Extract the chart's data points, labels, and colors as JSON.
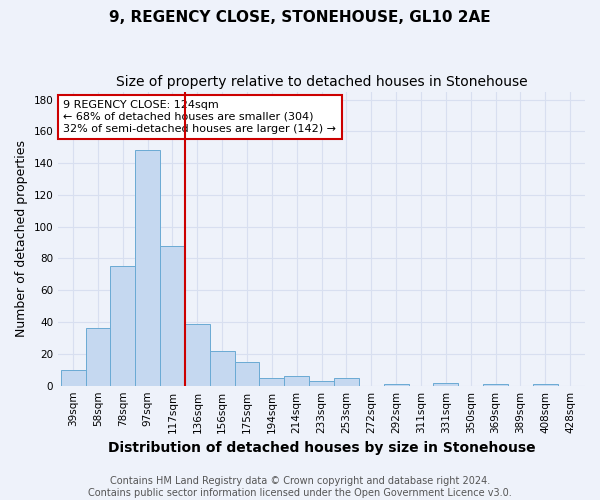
{
  "title1": "9, REGENCY CLOSE, STONEHOUSE, GL10 2AE",
  "title2": "Size of property relative to detached houses in Stonehouse",
  "xlabel": "Distribution of detached houses by size in Stonehouse",
  "ylabel": "Number of detached properties",
  "categories": [
    "39sqm",
    "58sqm",
    "78sqm",
    "97sqm",
    "117sqm",
    "136sqm",
    "156sqm",
    "175sqm",
    "194sqm",
    "214sqm",
    "233sqm",
    "253sqm",
    "272sqm",
    "292sqm",
    "311sqm",
    "331sqm",
    "350sqm",
    "369sqm",
    "389sqm",
    "408sqm",
    "428sqm"
  ],
  "values": [
    10,
    36,
    75,
    148,
    88,
    39,
    22,
    15,
    5,
    6,
    3,
    5,
    0,
    1,
    0,
    2,
    0,
    1,
    0,
    1,
    0
  ],
  "bar_color": "#c5d8f0",
  "bar_edge_color": "#6aaad4",
  "bar_width": 1.0,
  "vline_x": 4.5,
  "vline_color": "#cc0000",
  "annotation_line1": "9 REGENCY CLOSE: 124sqm",
  "annotation_line2": "← 68% of detached houses are smaller (304)",
  "annotation_line3": "32% of semi-detached houses are larger (142) →",
  "annotation_box_color": "#ffffff",
  "annotation_box_edge": "#cc0000",
  "ylim": [
    0,
    185
  ],
  "yticks": [
    0,
    20,
    40,
    60,
    80,
    100,
    120,
    140,
    160,
    180
  ],
  "footer": "Contains HM Land Registry data © Crown copyright and database right 2024.\nContains public sector information licensed under the Open Government Licence v3.0.",
  "background_color": "#eef2fa",
  "grid_color": "#d8dff0",
  "title1_fontsize": 11,
  "title2_fontsize": 10,
  "xlabel_fontsize": 10,
  "ylabel_fontsize": 9,
  "tick_fontsize": 7.5,
  "annotation_fontsize": 8,
  "footer_fontsize": 7
}
